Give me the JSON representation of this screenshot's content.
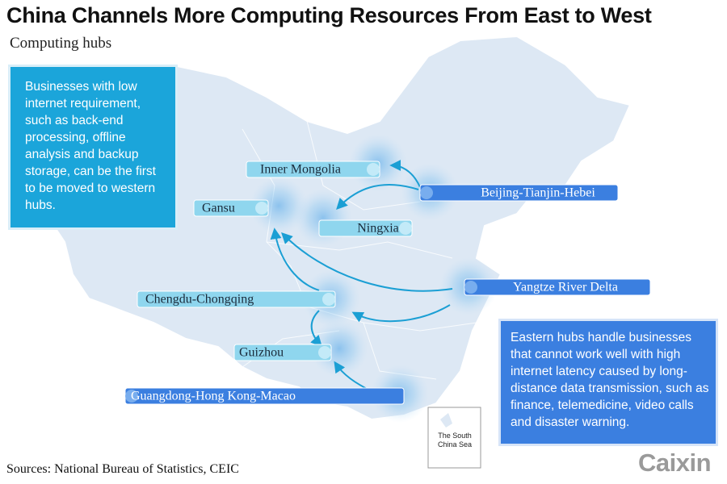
{
  "header": {
    "title": "China Channels More Computing Resources From East to West",
    "subtitle": "Computing hubs"
  },
  "notes": [
    {
      "text": "Businesses with low internet requirement, such as back-end processing, offline analysis and backup storage, can be the first to be moved to western hubs."
    },
    {
      "text": "Eastern hubs handle businesses that cannot work well with high internet latency caused by long-distance data transmission, such as finance, telemedicine, video calls and disaster warning."
    }
  ],
  "hubs": [
    {
      "label": "Inner Mongolia"
    },
    {
      "label": "Beijing-Tianjin-Hebei"
    },
    {
      "label": "Gansu"
    },
    {
      "label": "Ningxia"
    },
    {
      "label": "Yangtze River Delta"
    },
    {
      "label": "Chengdu-Chongqing"
    },
    {
      "label": "Guizhou"
    },
    {
      "label": "Guangdong-Hong Kong-Macao"
    }
  ],
  "inset": {
    "label": "The South China Sea"
  },
  "footer": {
    "source": "Sources: National Bureau of Statistics, CEIC",
    "logo": "Caixin"
  }
}
